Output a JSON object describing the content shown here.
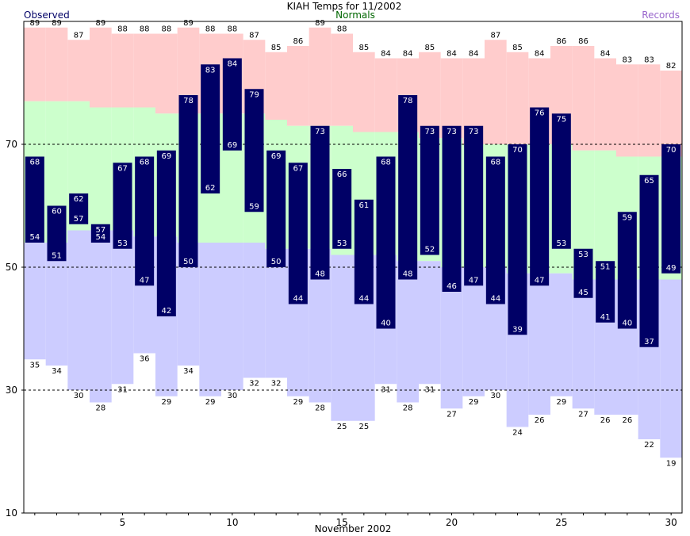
{
  "chart_data": {
    "type": "bar",
    "title": "KIAH Temps for 11/2002",
    "xlabel": "November 2002",
    "ylabel": "",
    "legend": {
      "observed": "Observed",
      "normals": "Normals",
      "records": "Records"
    },
    "x": [
      1,
      2,
      3,
      4,
      5,
      6,
      7,
      8,
      9,
      10,
      11,
      12,
      13,
      14,
      15,
      16,
      17,
      18,
      19,
      20,
      21,
      22,
      23,
      24,
      25,
      26,
      27,
      28,
      29,
      30
    ],
    "xticks": [
      5,
      10,
      15,
      20,
      25,
      30
    ],
    "yticks": [
      10,
      30,
      50,
      70
    ],
    "ylim": [
      10,
      90
    ],
    "xlim": [
      0.5,
      30.5
    ],
    "grid": "dashed at 30, 50, 70",
    "series": [
      {
        "name": "observed high",
        "values": [
          68,
          60,
          62,
          57,
          67,
          68,
          69,
          78,
          83,
          84,
          79,
          69,
          67,
          73,
          66,
          61,
          68,
          78,
          73,
          73,
          73,
          68,
          70,
          76,
          75,
          53,
          51,
          59,
          65,
          70
        ]
      },
      {
        "name": "observed low",
        "values": [
          54,
          51,
          57,
          54,
          53,
          47,
          42,
          50,
          62,
          69,
          59,
          50,
          44,
          48,
          53,
          44,
          40,
          48,
          52,
          46,
          47,
          44,
          39,
          47,
          53,
          45,
          41,
          40,
          37,
          49
        ]
      },
      {
        "name": "normal high",
        "values": [
          77,
          77,
          77,
          76,
          76,
          76,
          75,
          75,
          75,
          75,
          75,
          74,
          73,
          73,
          73,
          72,
          72,
          72,
          71,
          71,
          70,
          70,
          70,
          70,
          70,
          69,
          69,
          68,
          68,
          68
        ]
      },
      {
        "name": "normal low",
        "values": [
          54,
          54,
          56,
          56,
          56,
          55,
          55,
          54,
          54,
          54,
          54,
          53,
          53,
          53,
          52,
          52,
          52,
          51,
          51,
          50,
          50,
          50,
          49,
          49,
          49,
          48,
          48,
          48,
          48,
          48
        ]
      },
      {
        "name": "record high",
        "values": [
          89,
          89,
          87,
          89,
          88,
          88,
          88,
          89,
          88,
          88,
          87,
          85,
          86,
          89,
          88,
          85,
          84,
          84,
          85,
          84,
          84,
          87,
          85,
          84,
          86,
          86,
          84,
          83,
          83,
          82
        ]
      },
      {
        "name": "record low",
        "values": [
          35,
          34,
          30,
          28,
          31,
          36,
          29,
          34,
          29,
          30,
          32,
          32,
          29,
          28,
          25,
          25,
          31,
          28,
          31,
          27,
          29,
          30,
          24,
          26,
          29,
          27,
          26,
          26,
          22,
          19
        ]
      }
    ],
    "colors": {
      "observed": "#000066",
      "normals_band": "#ccffcc",
      "record_high_band": "#ffcccc",
      "record_low_band": "#ccccff",
      "observed_legend": "#000066",
      "normals_legend": "#006600",
      "records_legend": "#9966cc",
      "grid": "#000000"
    }
  }
}
